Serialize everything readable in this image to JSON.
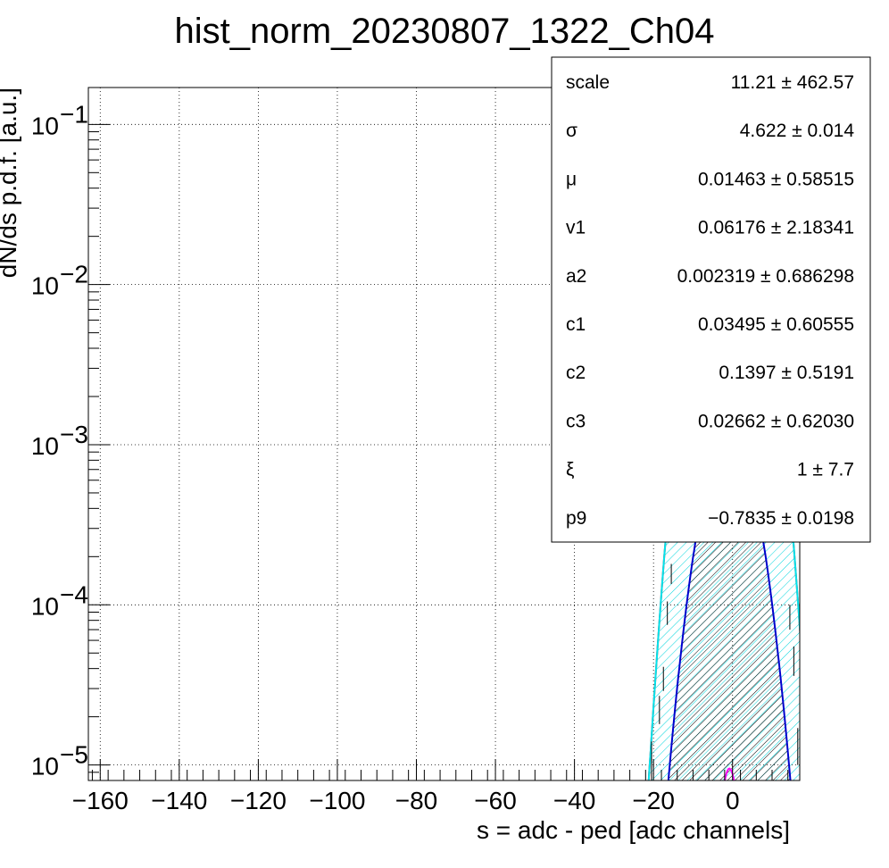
{
  "chart_data": {
    "type": "histogram-fit",
    "title": "hist_norm_20230807_1322_Ch04",
    "xlabel": "s = adc - ped [adc channels]",
    "ylabel": "dN/ds p.d.f. [a.u.]",
    "xlim": [
      -163,
      17
    ],
    "ylim": [
      8e-06,
      0.17
    ],
    "yscale": "log",
    "grid": true,
    "x_ticks": [
      -160,
      -140,
      -120,
      -100,
      -80,
      -60,
      -40,
      -20,
      0
    ],
    "x_tick_labels": [
      "−160",
      "−140",
      "−120",
      "−100",
      "−80",
      "−60",
      "−40",
      "−20",
      "0"
    ],
    "y_decades": [
      {
        "value": 1e-05,
        "base": "10",
        "exp": "−5"
      },
      {
        "value": 0.0001,
        "base": "10",
        "exp": "−4"
      },
      {
        "value": 0.001,
        "base": "10",
        "exp": "−3"
      },
      {
        "value": 0.01,
        "base": "10",
        "exp": "−2"
      },
      {
        "value": 0.1,
        "base": "10",
        "exp": "−1"
      }
    ],
    "curves": [
      {
        "role": "total-fit",
        "color": "#ff0000",
        "mu": -0.8,
        "sigma": 4.75,
        "peak": 0.082
      },
      {
        "role": "pedestal-component",
        "color": "#00e5ee",
        "mu": -0.8,
        "sigma": 4.75,
        "peak": 0.082,
        "hatch": true
      },
      {
        "role": "second-component",
        "color": "#0000cc",
        "mu": -0.8,
        "sigma": 4.9,
        "peak": 0.00115,
        "hatch": true
      },
      {
        "role": "third-component",
        "color": "#ff00ff",
        "mu": -0.8,
        "sigma": 2.0,
        "peak": 9.5e-06
      }
    ],
    "data_points": [
      {
        "x": -20.5,
        "y": 1.1e-05,
        "ylo": 8e-06,
        "yhi": 1.4e-05
      },
      {
        "x": -18.5,
        "y": 2.2e-05,
        "ylo": 1.8e-05,
        "yhi": 2.7e-05
      },
      {
        "x": -17.5,
        "y": 3.4e-05,
        "ylo": 2.9e-05,
        "yhi": 4.1e-05
      },
      {
        "x": -16.5,
        "y": 9e-05,
        "ylo": 7.5e-05,
        "yhi": 0.000105
      },
      {
        "x": -15.5,
        "y": 0.000155,
        "ylo": 0.000135,
        "yhi": 0.00018
      },
      {
        "x": 14.5,
        "y": 8.5e-05,
        "ylo": 7e-05,
        "yhi": 0.0001
      },
      {
        "x": 15.5,
        "y": 4.5e-05,
        "ylo": 3.6e-05,
        "yhi": 5.5e-05
      },
      {
        "x": 16.5,
        "y": 1.3e-05,
        "ylo": 1e-05,
        "yhi": 1.7e-05
      }
    ],
    "stats_box": {
      "position": "top-right",
      "rows": [
        {
          "name": "scale",
          "value": "11.21",
          "error": "462.57"
        },
        {
          "name": "σ",
          "value": "4.622",
          "error": "0.014"
        },
        {
          "name": "μ",
          "value": "0.01463",
          "error": "0.58515"
        },
        {
          "name": "v1",
          "value": "0.06176",
          "error": "2.18341"
        },
        {
          "name": "a2",
          "value": "0.002319",
          "error": "0.686298"
        },
        {
          "name": "c1",
          "value": "0.03495",
          "error": "0.60555"
        },
        {
          "name": "c2",
          "value": "0.1397",
          "error": "0.5191"
        },
        {
          "name": "c3",
          "value": "0.02662",
          "error": "0.62030"
        },
        {
          "name": "ξ",
          "value": "1",
          "error": "7.7"
        },
        {
          "name": "p9",
          "value": "−0.7835",
          "error": "0.0198"
        }
      ],
      "pm_symbol": "±"
    }
  }
}
